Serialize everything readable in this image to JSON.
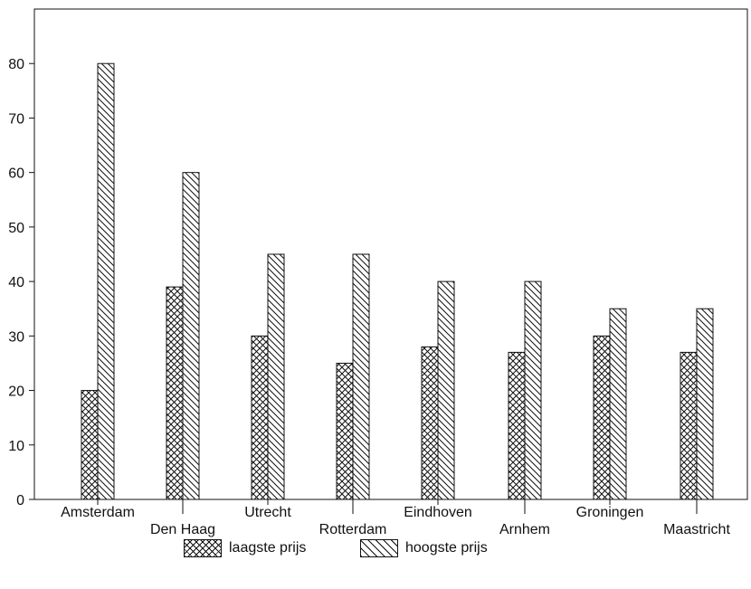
{
  "chart_data": {
    "type": "bar",
    "categories": [
      "Amsterdam",
      "Den Haag",
      "Utrecht",
      "Rotterdam",
      "Eindhoven",
      "Arnhem",
      "Groningen",
      "Maastricht"
    ],
    "series": [
      {
        "name": "laagste prijs",
        "values": [
          20,
          39,
          30,
          25,
          28,
          27,
          30,
          27
        ],
        "pattern": "crosshatch"
      },
      {
        "name": "hoogste prijs",
        "values": [
          80,
          60,
          45,
          45,
          40,
          40,
          35,
          35
        ],
        "pattern": "diagonal"
      }
    ],
    "yticks": [
      0,
      10,
      20,
      30,
      40,
      50,
      60,
      70,
      80
    ],
    "ylim": [
      0,
      90
    ],
    "title": "",
    "xlabel": "",
    "ylabel": "",
    "grid": false,
    "legend_position": "bottom-center",
    "colors": {
      "ink": "#111111",
      "background": "#ffffff"
    }
  }
}
